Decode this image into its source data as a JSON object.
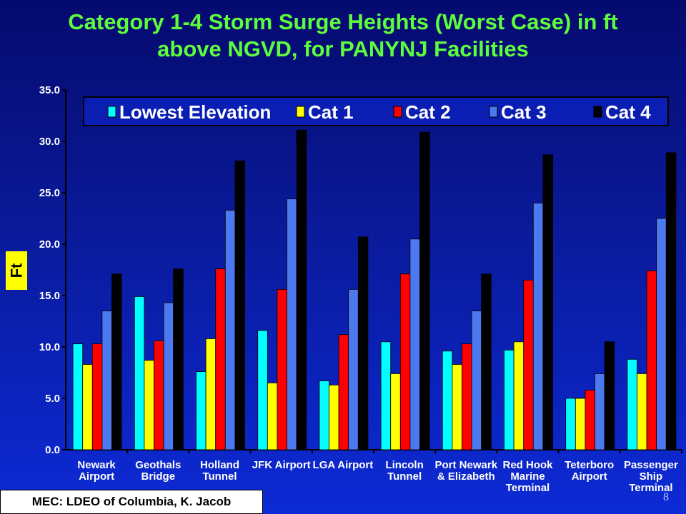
{
  "slide": {
    "title_line1": "Category 1-4 Storm Surge Heights (Worst Case) in ft",
    "title_line2": "above NGVD, for PANYNJ Facilities",
    "credit": "MEC:  LDEO of Columbia, K. Jacob",
    "page_number": "8"
  },
  "colors": {
    "Lowest Elevation": "#00ffff",
    "Cat 1": "#ffff00",
    "Cat 2": "#ff0000",
    "Cat 3": "#4d79f0",
    "Cat 4": "#000000"
  },
  "chart_data": {
    "type": "bar",
    "title": "Category 1-4 Storm Surge Heights (Worst Case) in ft above NGVD, for PANYNJ Facilities",
    "xlabel": "",
    "ylabel": "Ft",
    "ylim": [
      0,
      35
    ],
    "yticks": [
      "0.0",
      "5.0",
      "10.0",
      "15.0",
      "20.0",
      "25.0",
      "30.0",
      "35.0"
    ],
    "grid": false,
    "legend_position": "top",
    "categories": [
      [
        "Newark",
        "Airport"
      ],
      [
        "Geothals",
        "Bridge"
      ],
      [
        "Holland",
        "Tunnel"
      ],
      [
        "JFK Airport"
      ],
      [
        "LGA Airport"
      ],
      [
        "Lincoln",
        "Tunnel"
      ],
      [
        "Port Newark",
        "& Elizabeth"
      ],
      [
        "Red Hook",
        "Marine",
        "Terminal"
      ],
      [
        "Teterboro",
        "Airport"
      ],
      [
        "Passenger",
        "Ship",
        "Terminal"
      ]
    ],
    "series": [
      {
        "name": "Lowest Elevation",
        "values": [
          10.3,
          14.9,
          7.6,
          11.6,
          6.7,
          10.5,
          9.6,
          9.7,
          5.0,
          8.8
        ]
      },
      {
        "name": "Cat 1",
        "values": [
          8.3,
          8.7,
          10.8,
          6.5,
          6.3,
          7.4,
          8.3,
          10.5,
          5.0,
          7.4
        ]
      },
      {
        "name": "Cat 2",
        "values": [
          10.3,
          10.6,
          17.6,
          15.6,
          11.2,
          17.1,
          10.3,
          16.5,
          5.8,
          17.4
        ]
      },
      {
        "name": "Cat 3",
        "values": [
          13.5,
          14.3,
          23.3,
          24.4,
          15.6,
          20.5,
          13.5,
          24.0,
          7.4,
          22.5
        ]
      },
      {
        "name": "Cat 4",
        "values": [
          17.1,
          17.6,
          28.1,
          31.1,
          20.7,
          30.9,
          17.1,
          28.7,
          10.5,
          28.9
        ]
      }
    ]
  }
}
